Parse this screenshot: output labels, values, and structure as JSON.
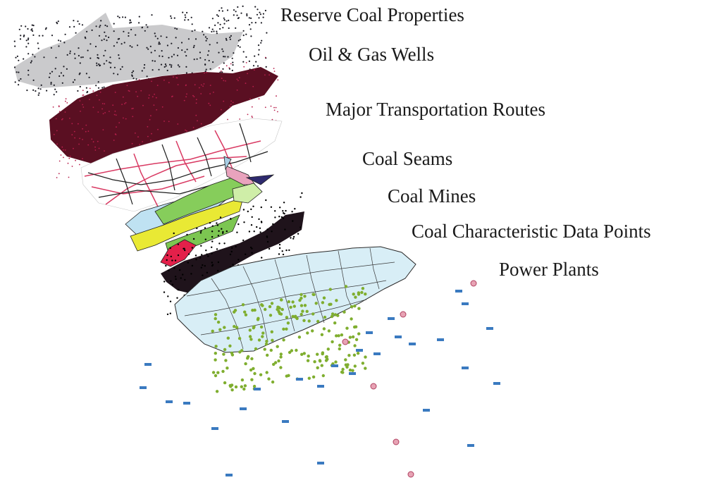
{
  "figure": {
    "layers": [
      {
        "id": "reserve",
        "label": "Reserve Coal Properties",
        "color": "#1c1c24"
      },
      {
        "id": "wells",
        "label": "Oil & Gas Wells",
        "color": "#6b0f2a"
      },
      {
        "id": "transport",
        "label": "Major Transportation Routes",
        "color": "#e2456f"
      },
      {
        "id": "seams",
        "label": "Coal Seams",
        "color": "#8fd46a"
      },
      {
        "id": "mines",
        "label": "Coal Mines",
        "color": "#1a1017"
      },
      {
        "id": "char_points",
        "label": "Coal Characteristic Data Points",
        "color": "#7fae2f"
      },
      {
        "id": "power",
        "label": "Power Plants",
        "color": "#3a7ac0"
      }
    ],
    "colors": {
      "background": "#ffffff",
      "county_fill": "#d8eef6",
      "boundary": "#2a2a2a",
      "seam_yellow": "#e8e832",
      "seam_red": "#e3204a",
      "seam_lightblue": "#bfe2f2",
      "seam_pink": "#e9a3bd",
      "seam_navy": "#2e2a6e",
      "plant_pink": "#e7a3b4"
    }
  }
}
